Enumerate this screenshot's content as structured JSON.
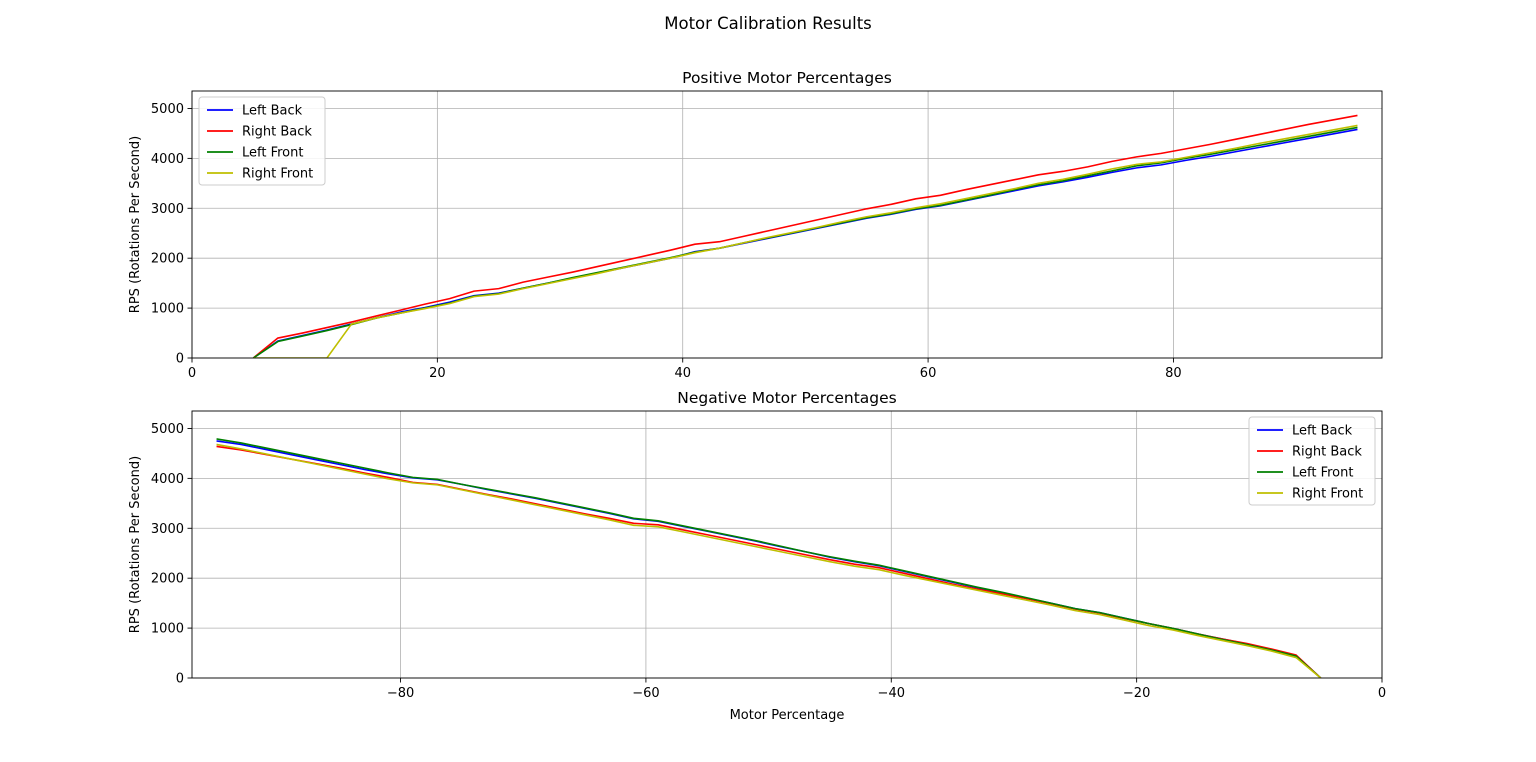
{
  "figure_title": "Motor Calibration Results",
  "chart_data": [
    {
      "type": "line",
      "title": "Positive Motor Percentages",
      "xlabel": "",
      "ylabel": "RPS (Rotations Per Second)",
      "xlim": [
        0,
        97
      ],
      "ylim": [
        0,
        5350
      ],
      "xticks": [
        0,
        20,
        40,
        60,
        80
      ],
      "xtick_labels": [
        "0",
        "20",
        "40",
        "60",
        "80"
      ],
      "yticks": [
        0,
        1000,
        2000,
        3000,
        4000,
        5000
      ],
      "ytick_labels": [
        "0",
        "1000",
        "2000",
        "3000",
        "4000",
        "5000"
      ],
      "grid": true,
      "legend_position": "upper left",
      "x": [
        5,
        7,
        9,
        11,
        13,
        15,
        17,
        19,
        21,
        23,
        25,
        27,
        29,
        31,
        33,
        35,
        37,
        39,
        41,
        43,
        45,
        47,
        49,
        51,
        53,
        55,
        57,
        59,
        61,
        63,
        65,
        67,
        69,
        71,
        73,
        75,
        77,
        79,
        81,
        83,
        85,
        87,
        89,
        91,
        93,
        95
      ],
      "series": [
        {
          "name": "Left Back",
          "color": "#0000ff",
          "values": [
            0,
            340,
            450,
            560,
            680,
            800,
            920,
            1010,
            1120,
            1250,
            1300,
            1400,
            1500,
            1600,
            1700,
            1800,
            1900,
            2000,
            2130,
            2200,
            2300,
            2400,
            2500,
            2600,
            2700,
            2800,
            2880,
            2980,
            3050,
            3150,
            3250,
            3350,
            3450,
            3530,
            3620,
            3720,
            3810,
            3870,
            3960,
            4040,
            4130,
            4220,
            4310,
            4400,
            4490,
            4580
          ]
        },
        {
          "name": "Right Back",
          "color": "#ff0000",
          "values": [
            0,
            400,
            500,
            610,
            720,
            840,
            960,
            1080,
            1190,
            1340,
            1390,
            1520,
            1620,
            1720,
            1830,
            1940,
            2050,
            2160,
            2280,
            2330,
            2440,
            2550,
            2660,
            2770,
            2880,
            2990,
            3080,
            3190,
            3260,
            3370,
            3470,
            3570,
            3670,
            3740,
            3830,
            3940,
            4030,
            4100,
            4190,
            4280,
            4380,
            4480,
            4580,
            4680,
            4770,
            4860
          ]
        },
        {
          "name": "Left Front",
          "color": "#008000",
          "values": [
            0,
            330,
            440,
            550,
            670,
            800,
            900,
            1000,
            1100,
            1240,
            1290,
            1400,
            1500,
            1610,
            1710,
            1810,
            1910,
            2010,
            2120,
            2200,
            2310,
            2410,
            2510,
            2610,
            2710,
            2810,
            2890,
            2990,
            3060,
            3160,
            3260,
            3370,
            3470,
            3550,
            3650,
            3750,
            3850,
            3910,
            4000,
            4080,
            4170,
            4260,
            4350,
            4440,
            4530,
            4620
          ]
        },
        {
          "name": "Right Front",
          "color": "#bfbf00",
          "values": [
            0,
            0,
            0,
            0,
            680,
            800,
            900,
            990,
            1090,
            1230,
            1280,
            1390,
            1490,
            1590,
            1690,
            1800,
            1900,
            2000,
            2110,
            2200,
            2310,
            2420,
            2520,
            2620,
            2730,
            2830,
            2910,
            3010,
            3090,
            3190,
            3290,
            3390,
            3500,
            3580,
            3680,
            3790,
            3880,
            3930,
            4020,
            4110,
            4200,
            4300,
            4390,
            4480,
            4570,
            4660
          ]
        }
      ]
    },
    {
      "type": "line",
      "title": "Negative Motor Percentages",
      "xlabel": "Motor Percentage",
      "ylabel": "RPS (Rotations Per Second)",
      "xlim": [
        -97,
        0
      ],
      "ylim": [
        0,
        5350
      ],
      "xticks": [
        -80,
        -60,
        -40,
        -20,
        0
      ],
      "xtick_labels": [
        "−80",
        "−60",
        "−40",
        "−20",
        "0"
      ],
      "yticks": [
        0,
        1000,
        2000,
        3000,
        4000,
        5000
      ],
      "ytick_labels": [
        "0",
        "1000",
        "2000",
        "3000",
        "4000",
        "5000"
      ],
      "grid": true,
      "legend_position": "upper right",
      "x": [
        -95,
        -93,
        -91,
        -89,
        -87,
        -85,
        -83,
        -81,
        -79,
        -77,
        -75,
        -73,
        -71,
        -69,
        -67,
        -65,
        -63,
        -61,
        -59,
        -57,
        -55,
        -53,
        -51,
        -49,
        -47,
        -45,
        -43,
        -41,
        -39,
        -37,
        -35,
        -33,
        -31,
        -29,
        -27,
        -25,
        -23,
        -21,
        -19,
        -17,
        -15,
        -13,
        -11,
        -9,
        -7,
        -5
      ],
      "series": [
        {
          "name": "Left Back",
          "color": "#0000ff",
          "values": [
            4750,
            4680,
            4580,
            4480,
            4380,
            4280,
            4180,
            4090,
            4010,
            3970,
            3880,
            3780,
            3690,
            3600,
            3500,
            3400,
            3300,
            3190,
            3140,
            3040,
            2940,
            2840,
            2740,
            2630,
            2530,
            2420,
            2330,
            2250,
            2140,
            2030,
            1920,
            1810,
            1710,
            1600,
            1500,
            1390,
            1310,
            1200,
            1090,
            990,
            880,
            780,
            680,
            570,
            450,
            0
          ]
        },
        {
          "name": "Right Back",
          "color": "#ff0000",
          "values": [
            4640,
            4570,
            4480,
            4390,
            4300,
            4210,
            4110,
            4020,
            3920,
            3880,
            3780,
            3680,
            3590,
            3490,
            3390,
            3290,
            3200,
            3100,
            3070,
            2970,
            2870,
            2770,
            2670,
            2570,
            2470,
            2370,
            2280,
            2210,
            2100,
            1990,
            1880,
            1780,
            1690,
            1590,
            1490,
            1380,
            1300,
            1190,
            1090,
            990,
            880,
            780,
            690,
            580,
            460,
            0
          ]
        },
        {
          "name": "Left Front",
          "color": "#008000",
          "values": [
            4790,
            4710,
            4610,
            4510,
            4410,
            4310,
            4210,
            4110,
            4020,
            3980,
            3880,
            3790,
            3700,
            3610,
            3510,
            3410,
            3310,
            3200,
            3150,
            3050,
            2950,
            2850,
            2750,
            2640,
            2530,
            2430,
            2340,
            2260,
            2150,
            2040,
            1930,
            1820,
            1720,
            1610,
            1500,
            1390,
            1310,
            1200,
            1090,
            990,
            880,
            770,
            670,
            560,
            440,
            0
          ]
        },
        {
          "name": "Right Front",
          "color": "#bfbf00",
          "values": [
            4680,
            4590,
            4490,
            4390,
            4290,
            4190,
            4090,
            3990,
            3910,
            3870,
            3770,
            3670,
            3570,
            3470,
            3370,
            3270,
            3170,
            3060,
            3030,
            2930,
            2830,
            2730,
            2630,
            2530,
            2430,
            2330,
            2240,
            2170,
            2060,
            1960,
            1860,
            1760,
            1660,
            1560,
            1460,
            1350,
            1270,
            1160,
            1050,
            960,
            850,
            750,
            650,
            540,
            410,
            0
          ]
        }
      ]
    }
  ]
}
